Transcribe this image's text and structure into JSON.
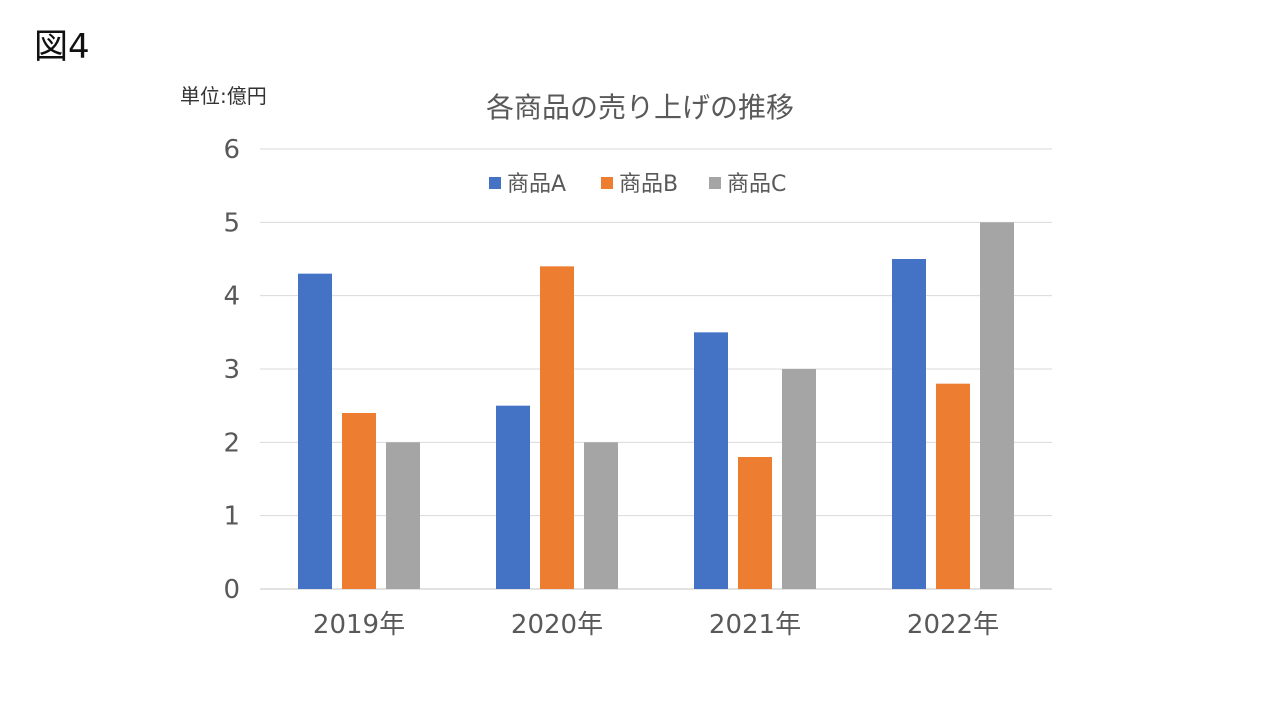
{
  "figure_label": "図4",
  "unit_label": "単位:億円",
  "chart_data": {
    "type": "bar",
    "title": "各商品の売り上げの推移",
    "categories": [
      "2019年",
      "2020年",
      "2021年",
      "2022年"
    ],
    "series": [
      {
        "name": "商品A",
        "color": "#4472C4",
        "values": [
          4.3,
          2.5,
          3.5,
          4.5
        ]
      },
      {
        "name": "商品B",
        "color": "#ED7D31",
        "values": [
          2.4,
          4.4,
          1.8,
          2.8
        ]
      },
      {
        "name": "商品C",
        "color": "#A5A5A5",
        "values": [
          2.0,
          2.0,
          3.0,
          5.0
        ]
      }
    ],
    "yticks": [
      0,
      1,
      2,
      3,
      4,
      5,
      6
    ],
    "ylim": [
      0,
      6
    ],
    "xlabel": "",
    "ylabel": "",
    "grid": true,
    "legend_position": "top"
  }
}
